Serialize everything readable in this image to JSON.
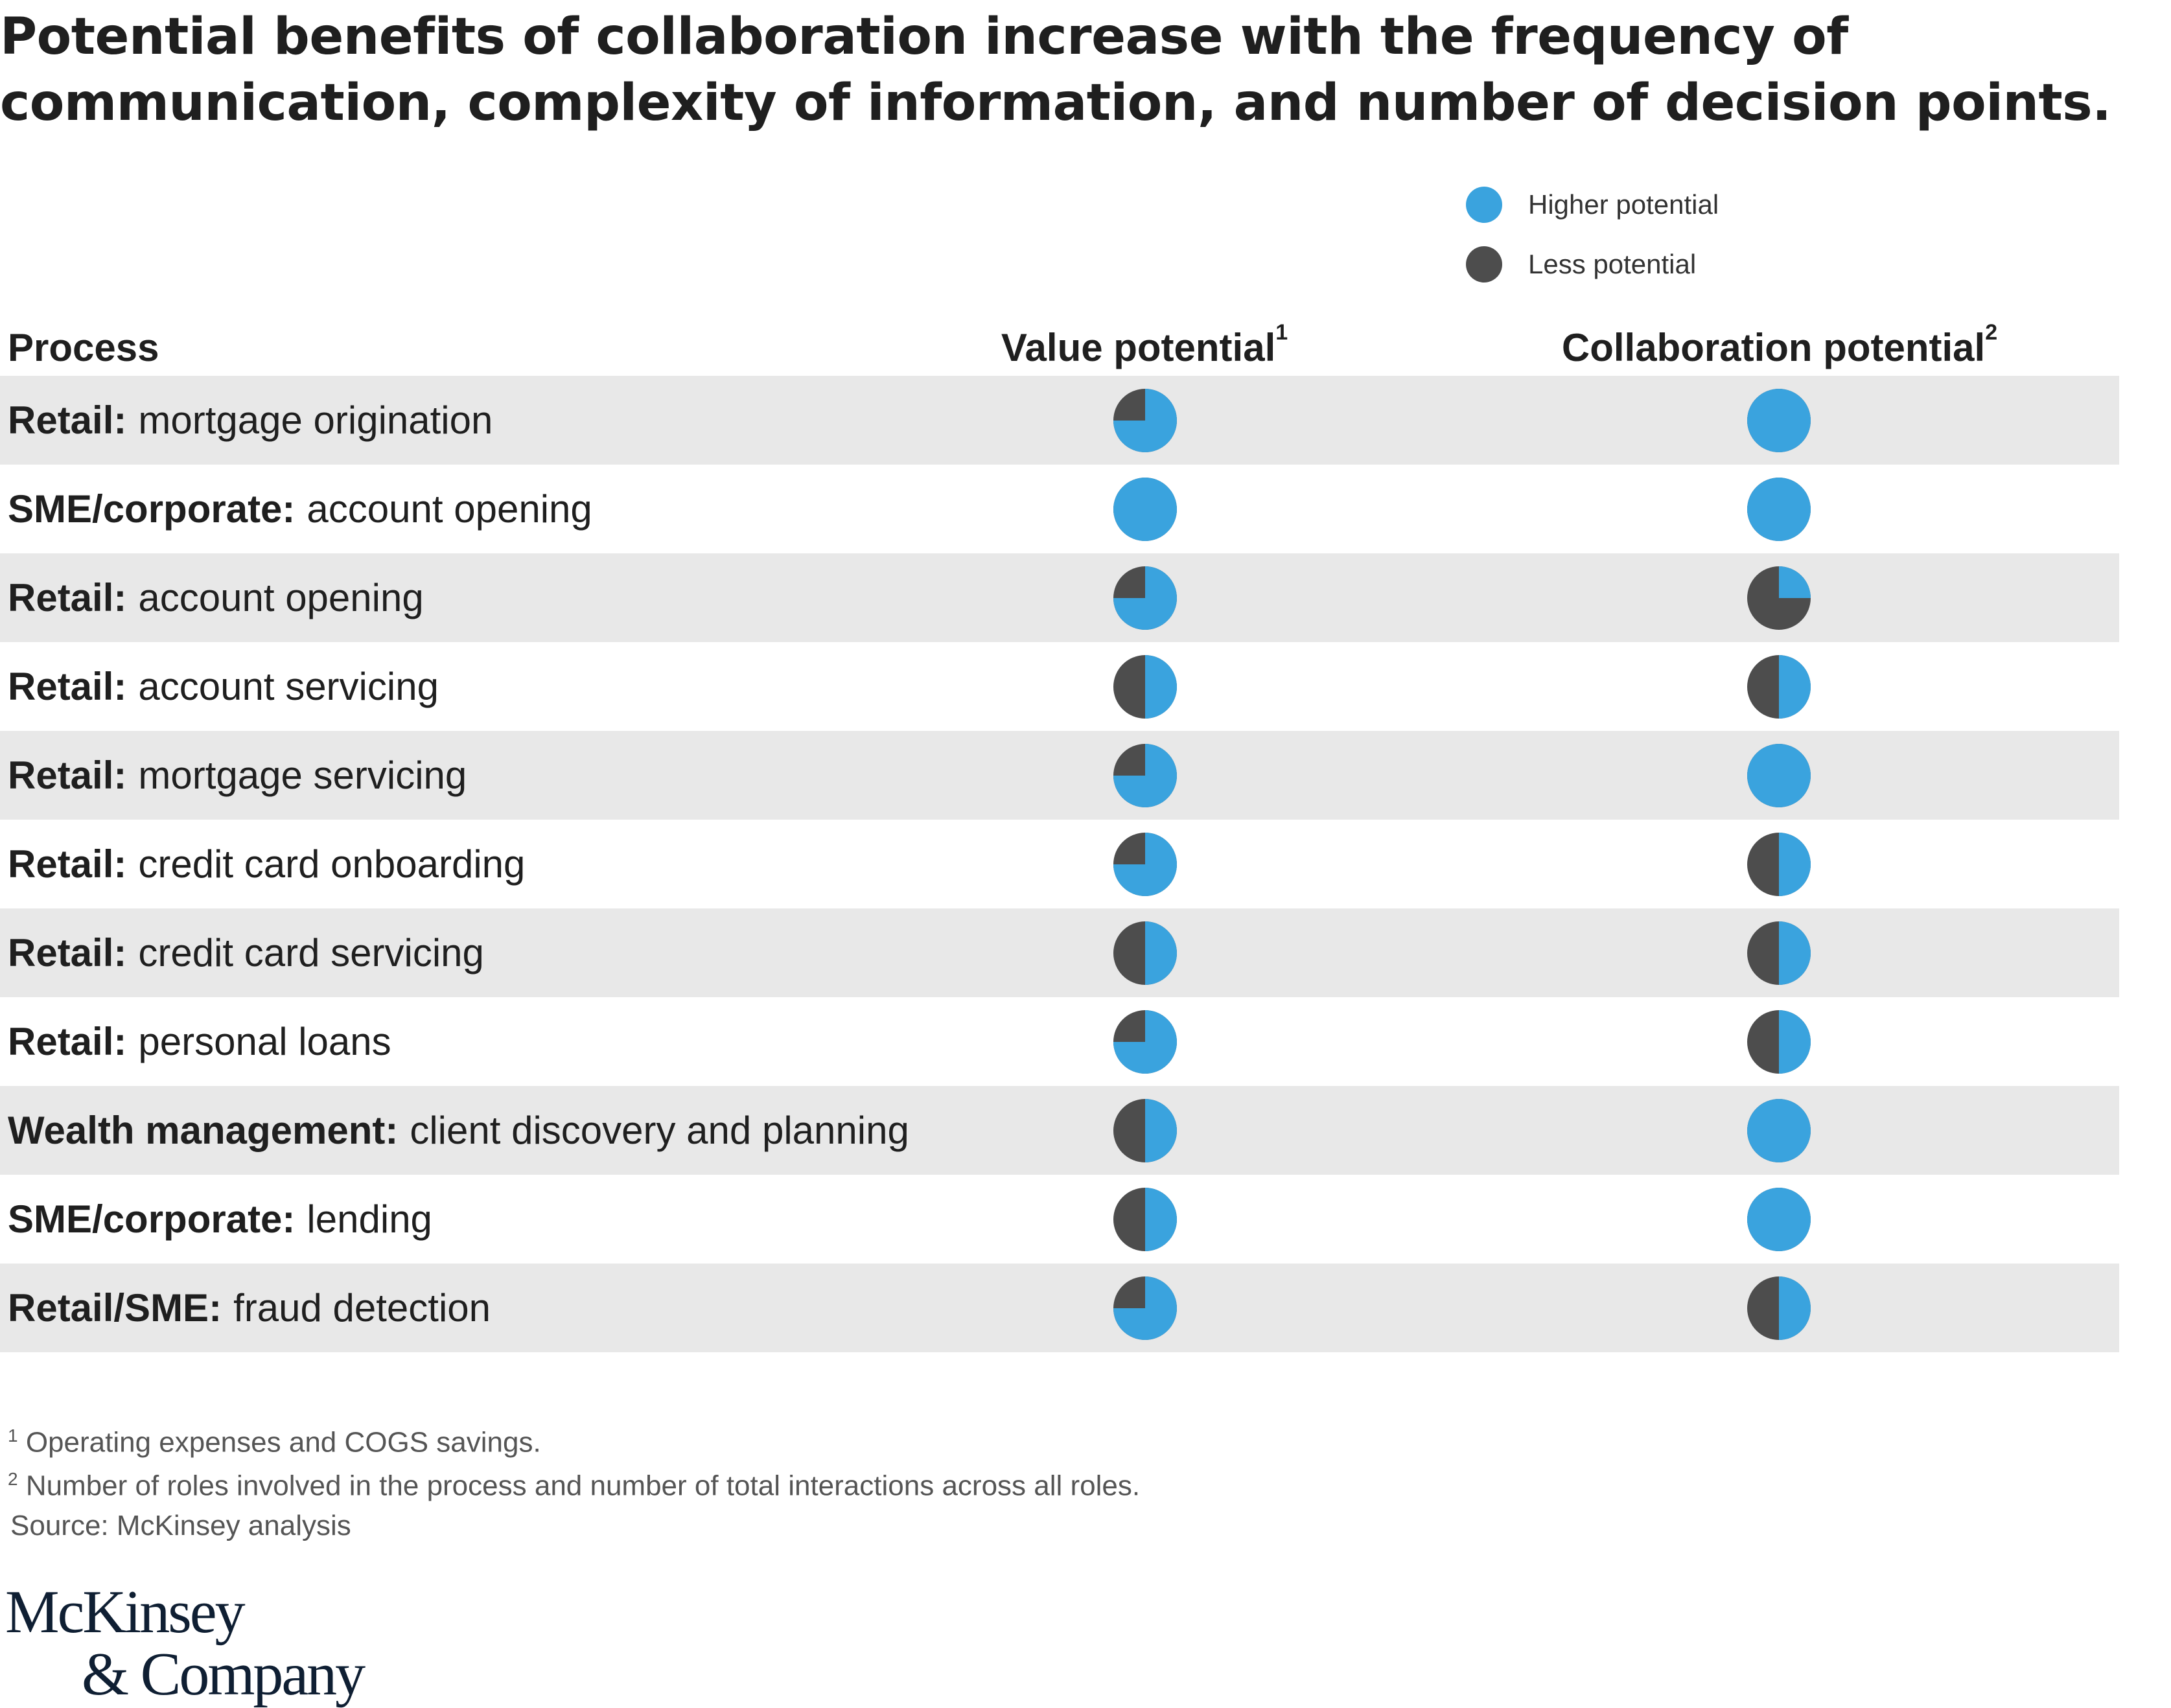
{
  "title": "Potential benefits of collaboration increase with the frequency of communication, complexity of information, and number of decision points.",
  "legend": [
    {
      "label": "Higher potential",
      "color": "#3AA3DE"
    },
    {
      "label": "Less potential",
      "color": "#4D4D4D"
    }
  ],
  "colors": {
    "higher": "#3AA3DE",
    "less": "#4D4D4D",
    "row_shade": "#E8E8E8"
  },
  "headers": {
    "process": "Process",
    "value": "Value potential",
    "value_note": "1",
    "collab": "Collaboration potential",
    "collab_note": "2"
  },
  "chart_data": {
    "type": "table",
    "title": "Potential benefits of collaboration increase with the frequency of communication, complexity of information, and number of decision points.",
    "encoding": "Harvey balls; value = fraction of circle shown as 'Higher potential' (blue), remainder 'Less potential' (dark gray)",
    "columns": [
      "Process",
      "Value potential",
      "Collaboration potential"
    ],
    "rows": [
      {
        "category": "Retail:",
        "process": "mortgage origination",
        "value": 0.75,
        "collab": 1.0
      },
      {
        "category": "SME/corporate:",
        "process": "account opening",
        "value": 1.0,
        "collab": 1.0
      },
      {
        "category": "Retail:",
        "process": "account opening",
        "value": 0.75,
        "collab": 0.25
      },
      {
        "category": "Retail:",
        "process": "account servicing",
        "value": 0.5,
        "collab": 0.5
      },
      {
        "category": "Retail:",
        "process": "mortgage servicing",
        "value": 0.75,
        "collab": 1.0
      },
      {
        "category": "Retail:",
        "process": "credit card onboarding",
        "value": 0.75,
        "collab": 0.5
      },
      {
        "category": "Retail:",
        "process": "credit card servicing",
        "value": 0.5,
        "collab": 0.5
      },
      {
        "category": "Retail:",
        "process": "personal loans",
        "value": 0.75,
        "collab": 0.5
      },
      {
        "category": "Wealth management:",
        "process": "client discovery and planning",
        "value": 0.5,
        "collab": 1.0
      },
      {
        "category": "SME/corporate:",
        "process": "lending",
        "value": 0.5,
        "collab": 1.0
      },
      {
        "category": "Retail/SME:",
        "process": "fraud detection",
        "value": 0.75,
        "collab": 0.5
      }
    ]
  },
  "footnotes": [
    {
      "mark": "1",
      "text": "Operating expenses and COGS savings."
    },
    {
      "mark": "2",
      "text": "Number of roles involved in the process and number of total interactions across all roles."
    }
  ],
  "source": "Source: McKinsey analysis",
  "logo": {
    "line1": "McKinsey",
    "line2": "& Company"
  }
}
